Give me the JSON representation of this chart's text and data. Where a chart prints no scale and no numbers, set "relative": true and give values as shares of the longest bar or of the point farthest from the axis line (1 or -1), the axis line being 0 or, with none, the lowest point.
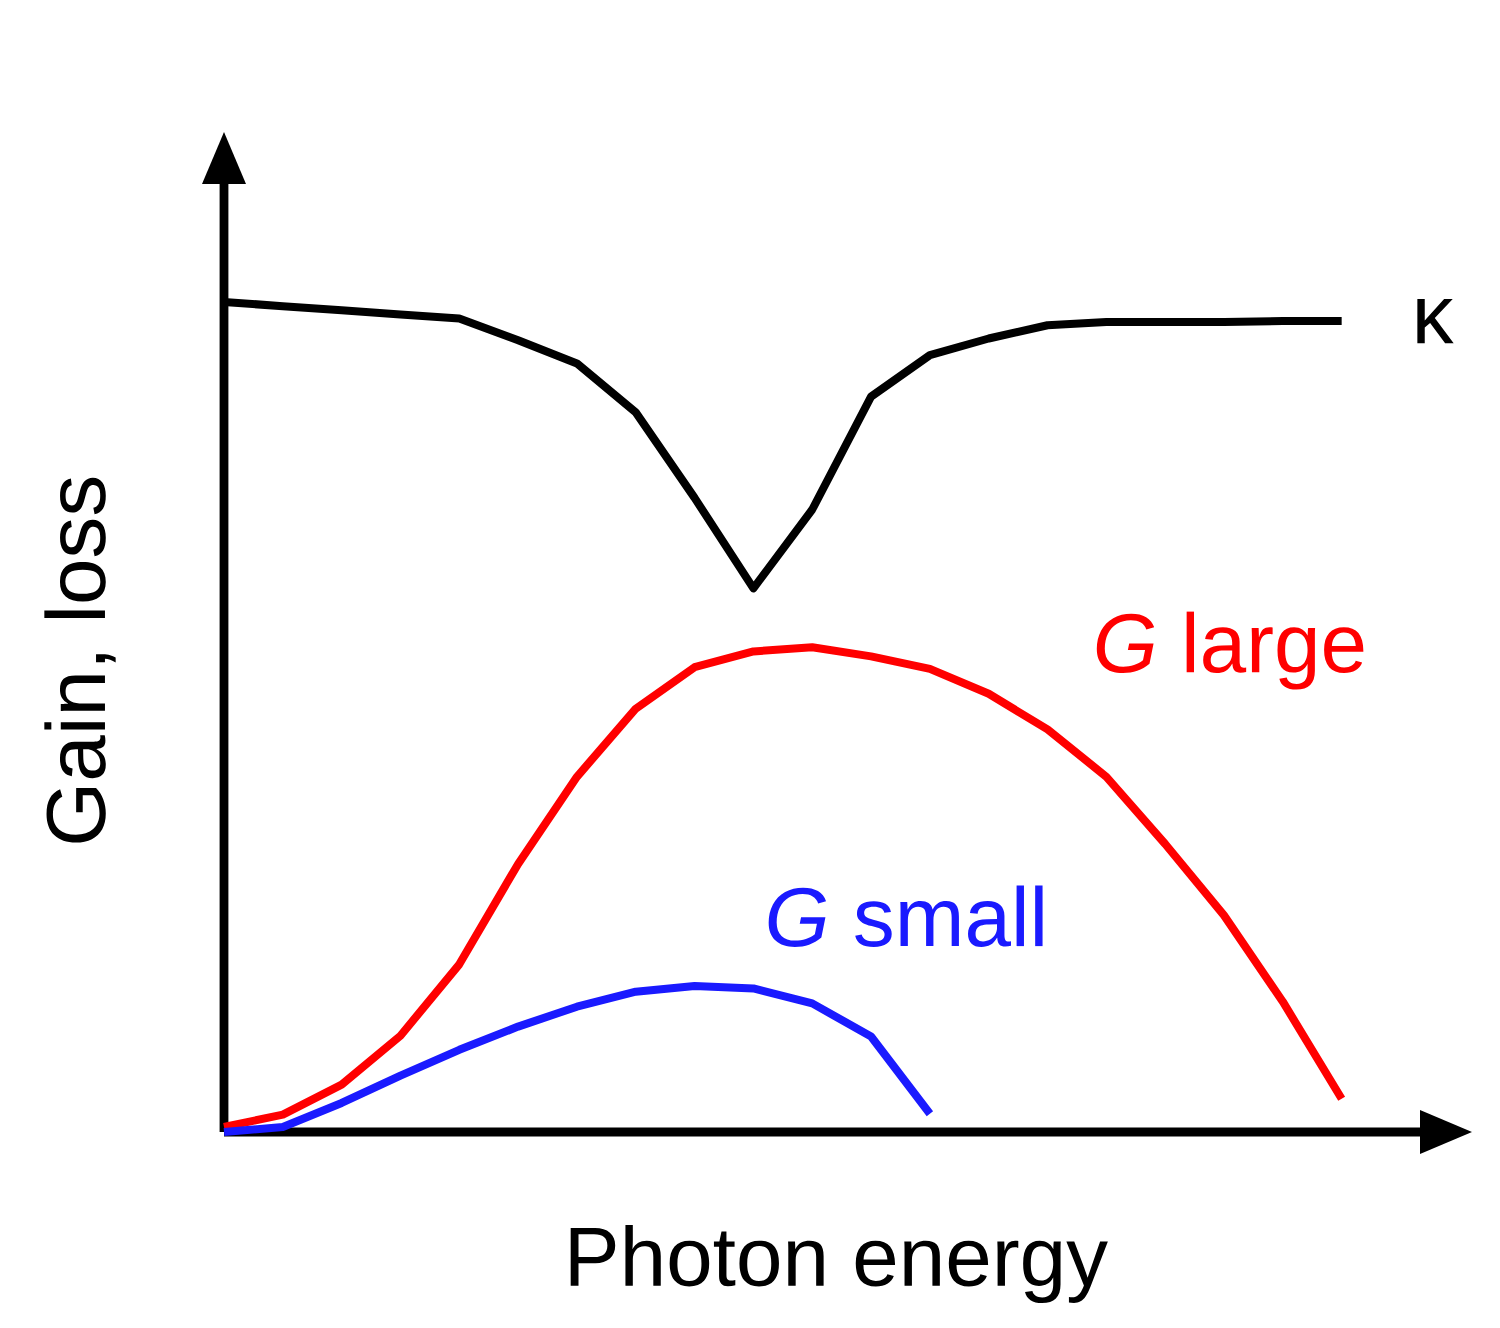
{
  "chart_data": {
    "type": "line",
    "relative": true,
    "xlabel": "Photon energy",
    "ylabel": "Gain, loss",
    "tick_labels": false,
    "marker": "none",
    "line_style": "solid",
    "categories": [
      null,
      null,
      null,
      null,
      null,
      null,
      null,
      null,
      null,
      null,
      null,
      null,
      null,
      null,
      null,
      null,
      null,
      null,
      null,
      null,
      null
    ],
    "series": [
      {
        "name": "κ",
        "color": "#000000",
        "values": [
          1,
          0.995,
          0.99,
          0.985,
          0.98,
          0.954,
          0.926,
          0.867,
          0.764,
          0.655,
          0.75,
          0.886,
          0.936,
          0.956,
          0.972,
          0.976,
          0.976,
          0.976,
          0.977,
          0.977,
          null
        ]
      },
      {
        "name": "*G* large",
        "color": "#ff0000",
        "values": [
          0.006,
          0.021,
          0.057,
          0.116,
          0.202,
          0.323,
          0.428,
          0.51,
          0.56,
          0.579,
          0.584,
          0.573,
          0.558,
          0.528,
          0.485,
          0.428,
          0.347,
          0.261,
          0.157,
          0.04,
          null
        ]
      },
      {
        "name": "*G* small",
        "color": "#1a1aff",
        "values": [
          0,
          0.006,
          0.035,
          0.068,
          0.099,
          0.127,
          0.151,
          0.169,
          0.176,
          0.173,
          0.155,
          0.115,
          0.022,
          null,
          null,
          null,
          null,
          null,
          null,
          null,
          null
        ]
      }
    ]
  }
}
